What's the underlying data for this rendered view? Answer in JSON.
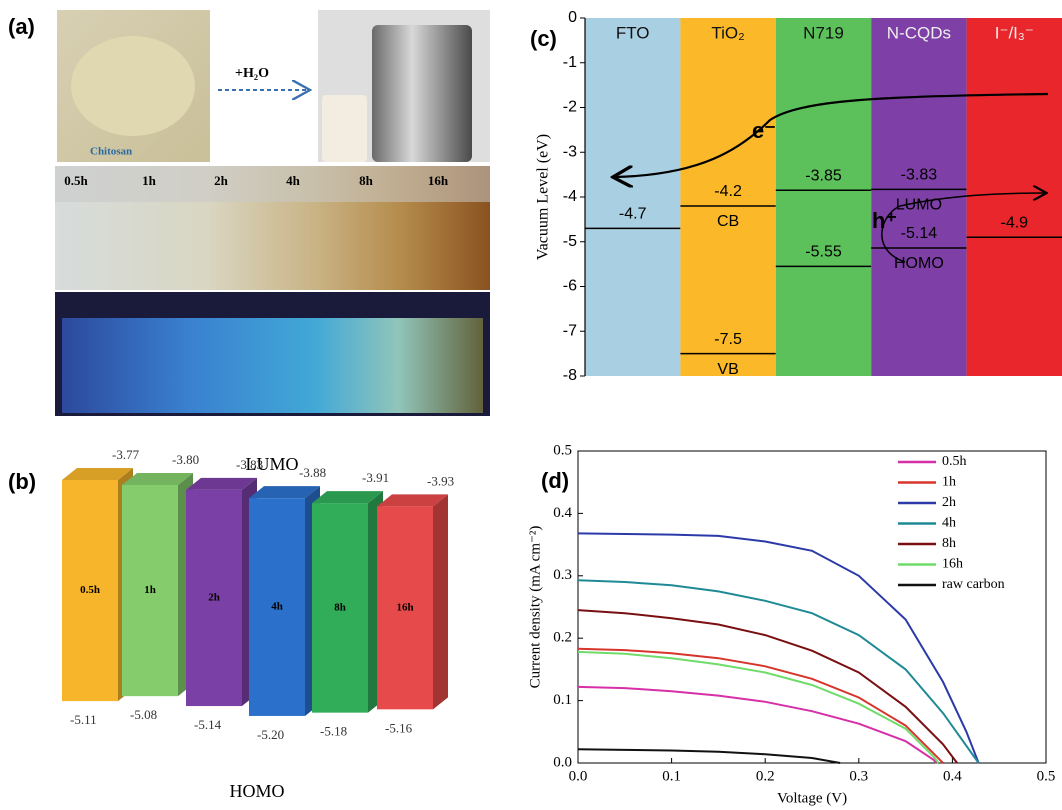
{
  "panel_a": {
    "panel_label": "(a)",
    "powder_label": "Chitosan",
    "arrow_label": "+H₂O",
    "vial_labels": [
      "0.5h",
      "1h",
      "2h",
      "4h",
      "8h",
      "16h"
    ]
  },
  "chart_data": [
    {
      "type": "floating_bar",
      "panel_label": "(b)",
      "categories": [
        "0.5h",
        "1h",
        "2h",
        "4h",
        "8h",
        "16h"
      ],
      "colors": [
        "#f6b52b",
        "#84cc6c",
        "#7b40a6",
        "#2b70cb",
        "#31ad5a",
        "#e74a4a"
      ],
      "series": [
        {
          "name": "LUMO",
          "values": [
            -3.77,
            -3.8,
            -3.83,
            -3.88,
            -3.91,
            -3.93
          ],
          "value_labels": [
            "-3.77",
            "-3.80",
            "-3.83",
            "-3.88",
            "-3.91",
            "-3.93"
          ]
        },
        {
          "name": "HOMO",
          "values": [
            -5.11,
            -5.08,
            -5.14,
            -5.2,
            -5.18,
            -5.16
          ],
          "value_labels": [
            "-5.11",
            "-5.08",
            "-5.14",
            "-5.20",
            "-5.18",
            "-5.16"
          ]
        }
      ]
    },
    {
      "type": "energy_level",
      "panel_label": "(c)",
      "y_label": "Vacuum Level (eV)",
      "ylim": [
        -8,
        0
      ],
      "yticks": [
        0,
        -1,
        -2,
        -3,
        -4,
        -5,
        -6,
        -7,
        -8
      ],
      "columns": [
        {
          "name": "FTO",
          "color": "#a9cfe2",
          "levels": [
            {
              "value": -4.7
            }
          ]
        },
        {
          "name": "TiO₂",
          "color": "#fbb829",
          "levels": [
            {
              "value": -4.2,
              "name": "CB"
            },
            {
              "value": -7.5,
              "name": "VB"
            }
          ]
        },
        {
          "name": "N719",
          "color": "#5cc15b",
          "levels": [
            {
              "value": -3.85
            },
            {
              "value": -5.55
            }
          ]
        },
        {
          "name": "N-CQDs",
          "color": "#7e3fa6",
          "levels": [
            {
              "value": -3.83,
              "name": "LUMO"
            },
            {
              "value": -5.14,
              "name": "HOMO"
            }
          ]
        },
        {
          "name": "I⁻/I₃⁻",
          "color": "#e8262b",
          "levels": [
            {
              "value": -4.9
            }
          ]
        }
      ],
      "annotations": [
        "e⁻",
        "h⁺"
      ]
    },
    {
      "type": "line",
      "panel_label": "(d)",
      "x_label": "Voltage (V)",
      "y_label": "Current density (mA cm⁻²)",
      "xlim": [
        0,
        0.5
      ],
      "xticks": [
        {
          "value": 0,
          "label": "0.0"
        },
        0.1,
        0.2,
        0.3,
        0.4,
        0.5
      ],
      "ylim": [
        0,
        0.5
      ],
      "yticks": [
        {
          "value": 0,
          "label": "0.0"
        },
        0.1,
        0.2,
        0.3,
        0.4,
        0.5
      ],
      "legend": "upper right",
      "series": [
        {
          "name": "0.5h",
          "color": "#d62fa8",
          "x": [
            0,
            0.05,
            0.1,
            0.15,
            0.2,
            0.25,
            0.3,
            0.35,
            0.38,
            0.383
          ],
          "values": [
            0.122,
            0.12,
            0.115,
            0.108,
            0.098,
            0.083,
            0.063,
            0.035,
            0.005,
            0
          ]
        },
        {
          "name": "1h",
          "color": "#d7352c",
          "x": [
            0,
            0.05,
            0.1,
            0.15,
            0.2,
            0.25,
            0.3,
            0.35,
            0.38,
            0.39
          ],
          "values": [
            0.183,
            0.181,
            0.176,
            0.168,
            0.155,
            0.135,
            0.105,
            0.06,
            0.015,
            0
          ]
        },
        {
          "name": "2h",
          "color": "#2b3aa8",
          "x": [
            0,
            0.05,
            0.1,
            0.15,
            0.2,
            0.25,
            0.3,
            0.35,
            0.39,
            0.415,
            0.428
          ],
          "values": [
            0.368,
            0.367,
            0.366,
            0.364,
            0.355,
            0.34,
            0.3,
            0.23,
            0.13,
            0.05,
            0
          ]
        },
        {
          "name": "4h",
          "color": "#1f8a96",
          "x": [
            0,
            0.05,
            0.1,
            0.15,
            0.2,
            0.25,
            0.3,
            0.35,
            0.39,
            0.428
          ],
          "values": [
            0.293,
            0.29,
            0.285,
            0.275,
            0.26,
            0.24,
            0.205,
            0.15,
            0.08,
            0
          ]
        },
        {
          "name": "8h",
          "color": "#7a0f12",
          "x": [
            0,
            0.05,
            0.1,
            0.15,
            0.2,
            0.25,
            0.3,
            0.35,
            0.39,
            0.405
          ],
          "values": [
            0.245,
            0.24,
            0.232,
            0.222,
            0.205,
            0.18,
            0.145,
            0.09,
            0.03,
            0
          ]
        },
        {
          "name": "16h",
          "color": "#6fdc6a",
          "x": [
            0,
            0.05,
            0.1,
            0.15,
            0.2,
            0.25,
            0.3,
            0.35,
            0.38,
            0.385
          ],
          "values": [
            0.178,
            0.175,
            0.168,
            0.158,
            0.145,
            0.125,
            0.095,
            0.055,
            0.01,
            0
          ]
        },
        {
          "name": "raw carbon",
          "color": "#111111",
          "x": [
            0,
            0.05,
            0.1,
            0.15,
            0.2,
            0.25,
            0.28
          ],
          "values": [
            0.022,
            0.021,
            0.02,
            0.018,
            0.014,
            0.008,
            0
          ]
        }
      ]
    }
  ]
}
